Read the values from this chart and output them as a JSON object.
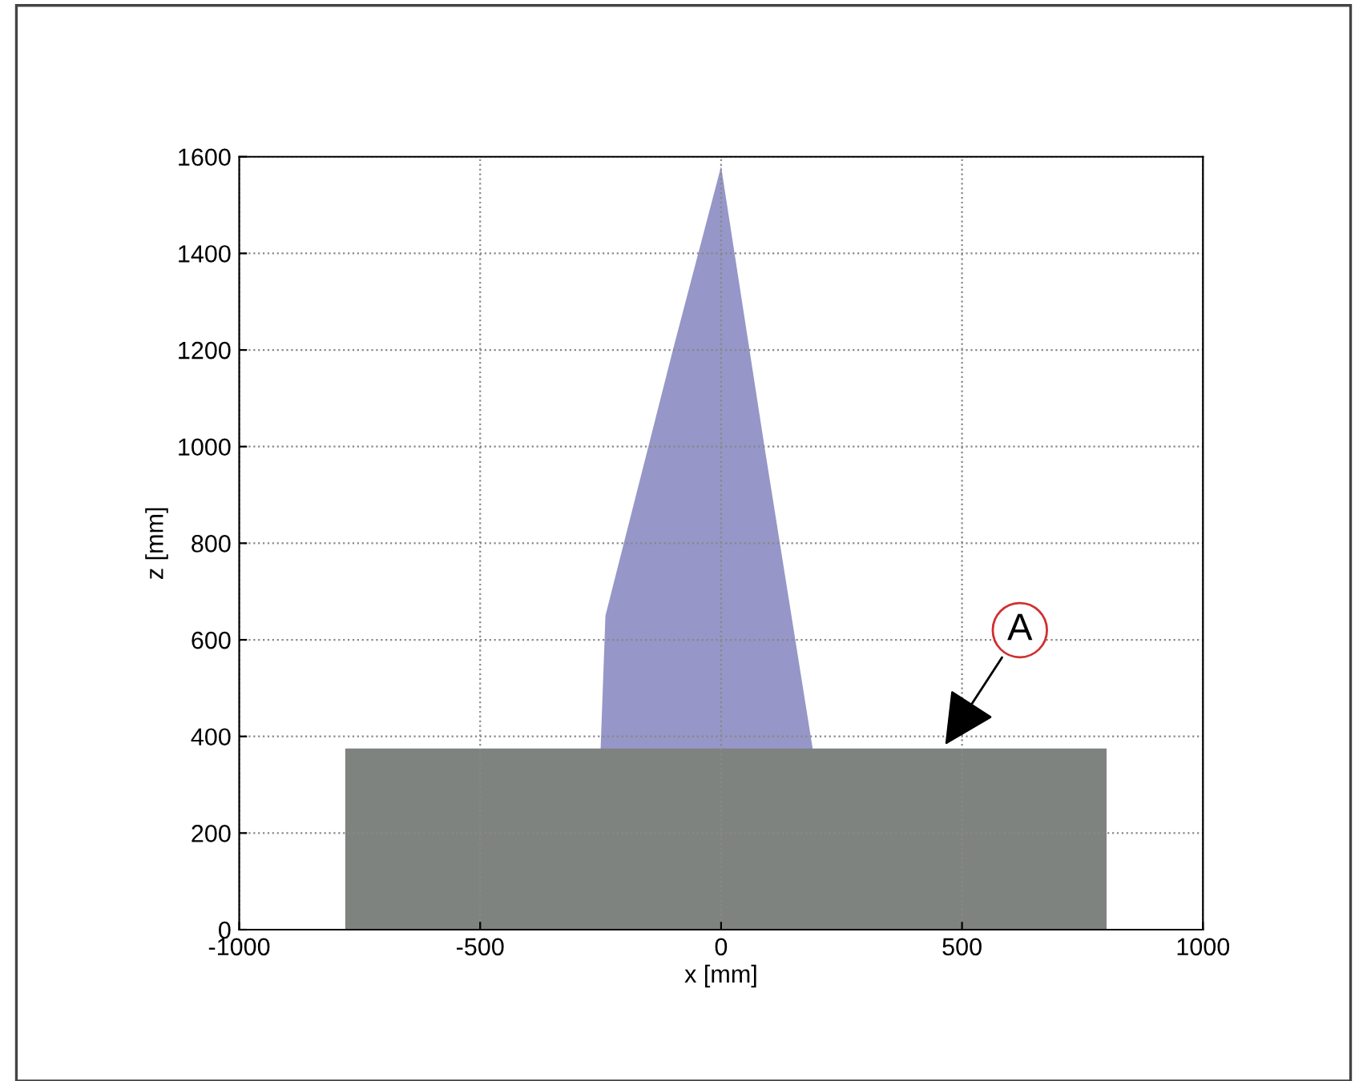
{
  "chart_data": {
    "type": "area",
    "xlabel": "x [mm]",
    "ylabel": "z [mm]",
    "series": [
      {
        "color": "#9696c8",
        "x": [
          -250,
          -240,
          -100,
          0,
          90,
          190
        ],
        "values": [
          375,
          650,
          1200,
          1580,
          1000,
          375
        ]
      },
      {
        "color": "#7f8380",
        "x": [
          -780,
          -780,
          800,
          800
        ],
        "values": [
          0,
          375,
          375,
          0
        ]
      }
    ],
    "xlim": [
      -1000,
      1000
    ],
    "xticks": [
      -1000,
      -500,
      0,
      500,
      1000
    ],
    "ylim": [
      0,
      1600
    ],
    "yticks": [
      0,
      200,
      400,
      600,
      800,
      1000,
      1200,
      1400,
      1600
    ],
    "grid": true,
    "annotations": [
      {
        "text": "A",
        "x": 460,
        "y": 375
      }
    ]
  }
}
